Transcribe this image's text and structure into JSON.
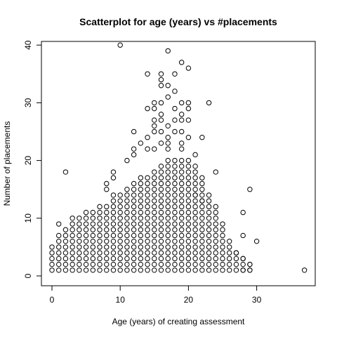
{
  "chart_data": {
    "type": "scatter",
    "title": "Scatterplot for age (years) vs #placements",
    "xlabel": "Age (years) of creating assessment",
    "ylabel": "Number of placements",
    "xlim": [
      -1.5,
      38
    ],
    "ylim": [
      -1,
      42
    ],
    "x_ticks": [
      0,
      10,
      20,
      30
    ],
    "y_ticks": [
      0,
      10,
      20,
      30,
      40
    ],
    "grid": false,
    "legend": "none",
    "marker": "open-circle",
    "point_color": "#000000",
    "dense_region": {
      "note": "visible grid of points at integer ages with these max placements",
      "ages": [
        0,
        1,
        2,
        3,
        4,
        5,
        6,
        7,
        8,
        9,
        10,
        11,
        12,
        13,
        14,
        15,
        16,
        17,
        18,
        19,
        20,
        21,
        22,
        23,
        24,
        25,
        26,
        27,
        28,
        29
      ],
      "max_placements": [
        5,
        7,
        8,
        10,
        10,
        11,
        11,
        12,
        12,
        14,
        14,
        15,
        16,
        17,
        17,
        18,
        19,
        20,
        20,
        20,
        20,
        19,
        17,
        14,
        12,
        9,
        6,
        4,
        3,
        2
      ]
    },
    "points": [
      [
        10,
        40
      ],
      [
        17,
        39
      ],
      [
        19,
        37
      ],
      [
        20,
        36
      ],
      [
        14,
        35
      ],
      [
        16,
        35
      ],
      [
        18,
        35
      ],
      [
        16,
        34
      ],
      [
        16,
        33
      ],
      [
        17,
        33
      ],
      [
        18,
        32
      ],
      [
        17,
        31
      ],
      [
        15,
        30
      ],
      [
        16,
        30
      ],
      [
        19,
        30
      ],
      [
        20,
        30
      ],
      [
        23,
        30
      ],
      [
        14,
        29
      ],
      [
        15,
        29
      ],
      [
        18,
        29
      ],
      [
        20,
        29
      ],
      [
        16,
        28
      ],
      [
        19,
        28
      ],
      [
        15,
        27
      ],
      [
        16,
        27
      ],
      [
        18,
        27
      ],
      [
        19,
        27
      ],
      [
        20,
        27
      ],
      [
        15,
        26
      ],
      [
        17,
        26
      ],
      [
        12,
        25
      ],
      [
        15,
        25
      ],
      [
        16,
        25
      ],
      [
        18,
        25
      ],
      [
        19,
        25
      ],
      [
        14,
        24
      ],
      [
        17,
        24
      ],
      [
        20,
        24
      ],
      [
        22,
        24
      ],
      [
        13,
        23
      ],
      [
        16,
        23
      ],
      [
        17,
        23
      ],
      [
        19,
        23
      ],
      [
        12,
        22
      ],
      [
        14,
        22
      ],
      [
        15,
        22
      ],
      [
        17,
        22
      ],
      [
        19,
        22
      ],
      [
        21,
        21
      ],
      [
        11,
        20
      ],
      [
        12,
        21
      ],
      [
        2,
        18
      ],
      [
        9,
        18
      ],
      [
        24,
        18
      ],
      [
        9,
        17
      ],
      [
        8,
        16
      ],
      [
        8,
        15
      ],
      [
        29,
        15
      ],
      [
        21,
        14
      ],
      [
        22,
        13
      ],
      [
        28,
        11
      ],
      [
        1,
        9
      ],
      [
        28,
        7
      ],
      [
        30,
        6
      ],
      [
        27,
        4
      ],
      [
        28,
        3
      ],
      [
        29,
        2
      ],
      [
        28,
        1
      ],
      [
        29,
        1
      ],
      [
        37,
        1
      ]
    ]
  }
}
